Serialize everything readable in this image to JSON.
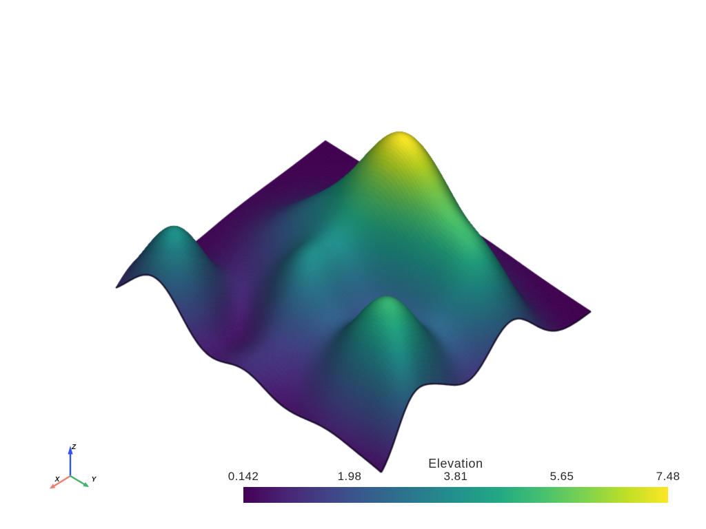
{
  "background_color": "#ffffff",
  "chart_data": {
    "type": "surface",
    "title": "Elevation",
    "view": "isometric-from-near-corner",
    "scalar_range": [
      0.142,
      7.48
    ],
    "colorbar": {
      "title": "Elevation",
      "orientation": "horizontal",
      "tick_labels": [
        "0.142",
        "1.98",
        "3.81",
        "5.65",
        "7.48"
      ],
      "tick_values": [
        0.142,
        1.98,
        3.81,
        5.65,
        7.48
      ]
    },
    "colormap": {
      "name": "viridis",
      "stops": [
        {
          "t": 0.0,
          "color": "#440154"
        },
        {
          "t": 0.1,
          "color": "#482475"
        },
        {
          "t": 0.2,
          "color": "#414487"
        },
        {
          "t": 0.3,
          "color": "#355f8d"
        },
        {
          "t": 0.4,
          "color": "#2a788e"
        },
        {
          "t": 0.5,
          "color": "#21918c"
        },
        {
          "t": 0.6,
          "color": "#22a884"
        },
        {
          "t": 0.7,
          "color": "#44bf70"
        },
        {
          "t": 0.8,
          "color": "#7ad151"
        },
        {
          "t": 0.9,
          "color": "#bddf26"
        },
        {
          "t": 1.0,
          "color": "#fde725"
        }
      ]
    },
    "surface": {
      "base_elevation": 0.142,
      "clamp": [
        0.05,
        7.6
      ],
      "hills": [
        {
          "u": 0.62,
          "v": 0.4,
          "amp": 7.1,
          "sigma": 0.14
        },
        {
          "u": 0.1,
          "v": 0.85,
          "amp": 3.9,
          "sigma": 0.105
        },
        {
          "u": 0.3,
          "v": 0.52,
          "amp": 3.2,
          "sigma": 0.11
        },
        {
          "u": 0.5,
          "v": 0.72,
          "amp": 1.2,
          "sigma": 0.125
        },
        {
          "u": 0.66,
          "v": 0.64,
          "amp": 1.6,
          "sigma": 0.15
        },
        {
          "u": 0.61,
          "v": 0.12,
          "amp": 4.0,
          "sigma": 0.115
        },
        {
          "u": 0.24,
          "v": 0.165,
          "amp": 5.2,
          "sigma": 0.125
        },
        {
          "u": 0.13,
          "v": 0.02,
          "amp": 1.3,
          "sigma": 0.07
        },
        {
          "u": 0.03,
          "v": 0.52,
          "amp": 0.9,
          "sigma": 0.085
        },
        {
          "u": 0.44,
          "v": 0.3,
          "amp": -1.5,
          "sigma": 0.14
        },
        {
          "u": 0.17,
          "v": 0.68,
          "amp": -0.9,
          "sigma": 0.09
        },
        {
          "u": 0.07,
          "v": 0.07,
          "amp": -0.45,
          "sigma": 0.1
        }
      ]
    }
  },
  "orientation_widget": {
    "x_label": "X",
    "y_label": "Y",
    "z_label": "Z",
    "x_color": "#ef8170",
    "y_color": "#3eb36c",
    "z_color": "#3352ec"
  }
}
